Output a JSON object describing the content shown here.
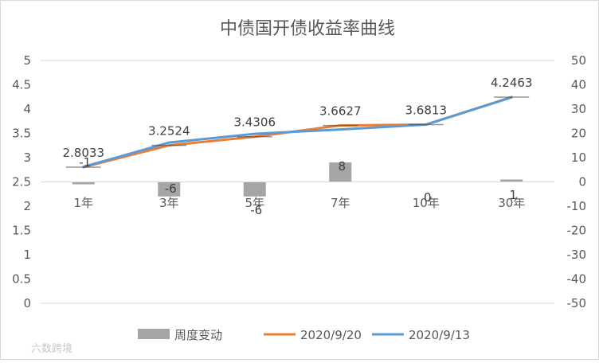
{
  "chart_data": {
    "type": "bar",
    "title": "中债国开债收益率曲线",
    "categories": [
      "1年",
      "3年",
      "5年",
      "7年",
      "10年",
      "30年"
    ],
    "left_axis": {
      "range": [
        0,
        5
      ],
      "step": 0.5,
      "ticks": [
        "0",
        "0.5",
        "1",
        "1.5",
        "2",
        "2.5",
        "3",
        "3.5",
        "4",
        "4.5",
        "5"
      ]
    },
    "right_axis": {
      "range": [
        -50,
        50
      ],
      "step": 10,
      "ticks": [
        "-50",
        "-40",
        "-30",
        "-20",
        "-10",
        "0",
        "10",
        "20",
        "30",
        "40",
        "50"
      ]
    },
    "series": [
      {
        "name": "周度变动",
        "type": "bar",
        "axis": "right",
        "values": [
          -1,
          -6,
          -6,
          8,
          0,
          1
        ],
        "labels": [
          "-1",
          "-6",
          "-6",
          "8",
          "0",
          "1"
        ],
        "color": "#a5a5a5"
      },
      {
        "name": "2020/9/20",
        "type": "line",
        "axis": "left",
        "values": [
          2.8033,
          3.2524,
          3.4306,
          3.6627,
          3.6813,
          4.2463
        ],
        "labels": [
          "2.8033",
          "3.2524",
          "3.4306",
          "3.6627",
          "3.6813",
          "4.2463"
        ],
        "color": "#ed7d31"
      },
      {
        "name": "2020/9/13",
        "type": "line",
        "axis": "left",
        "values": [
          2.81,
          3.31,
          3.49,
          3.58,
          3.68,
          4.24
        ],
        "color": "#5b9bd5"
      }
    ],
    "grid": false,
    "legend_position": "bottom"
  },
  "watermark": "六数跨境"
}
